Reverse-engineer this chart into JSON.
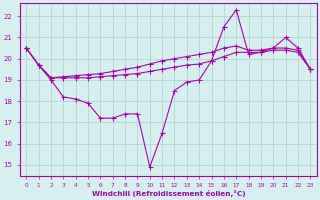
{
  "xlabel": "Windchill (Refroidissement éolien,°C)",
  "xlim": [
    -0.5,
    23.5
  ],
  "ylim": [
    14.5,
    22.6
  ],
  "yticks": [
    15,
    16,
    17,
    18,
    19,
    20,
    21,
    22
  ],
  "xticks": [
    0,
    1,
    2,
    3,
    4,
    5,
    6,
    7,
    8,
    9,
    10,
    11,
    12,
    13,
    14,
    15,
    16,
    17,
    18,
    19,
    20,
    21,
    22,
    23
  ],
  "bg_color": "#d6f0f0",
  "grid_color": "#b0d8d0",
  "line_color": "#aa00aa",
  "line1_y": [
    20.5,
    19.7,
    19.0,
    18.2,
    18.1,
    17.9,
    17.2,
    17.2,
    17.4,
    17.4,
    14.9,
    16.5,
    18.5,
    18.9,
    19.0,
    19.9,
    21.5,
    22.3,
    20.2,
    20.3,
    20.5,
    21.0,
    20.5,
    19.5
  ],
  "line2_y": [
    20.5,
    19.7,
    19.1,
    19.1,
    19.1,
    19.1,
    19.15,
    19.2,
    19.25,
    19.3,
    19.4,
    19.5,
    19.6,
    19.7,
    19.75,
    19.9,
    20.1,
    20.3,
    20.3,
    20.3,
    20.4,
    20.4,
    20.3,
    19.5
  ],
  "line3_y": [
    20.5,
    19.7,
    19.1,
    19.15,
    19.2,
    19.25,
    19.3,
    19.4,
    19.5,
    19.6,
    19.75,
    19.9,
    20.0,
    20.1,
    20.2,
    20.3,
    20.5,
    20.6,
    20.4,
    20.4,
    20.5,
    20.5,
    20.4,
    19.5
  ]
}
